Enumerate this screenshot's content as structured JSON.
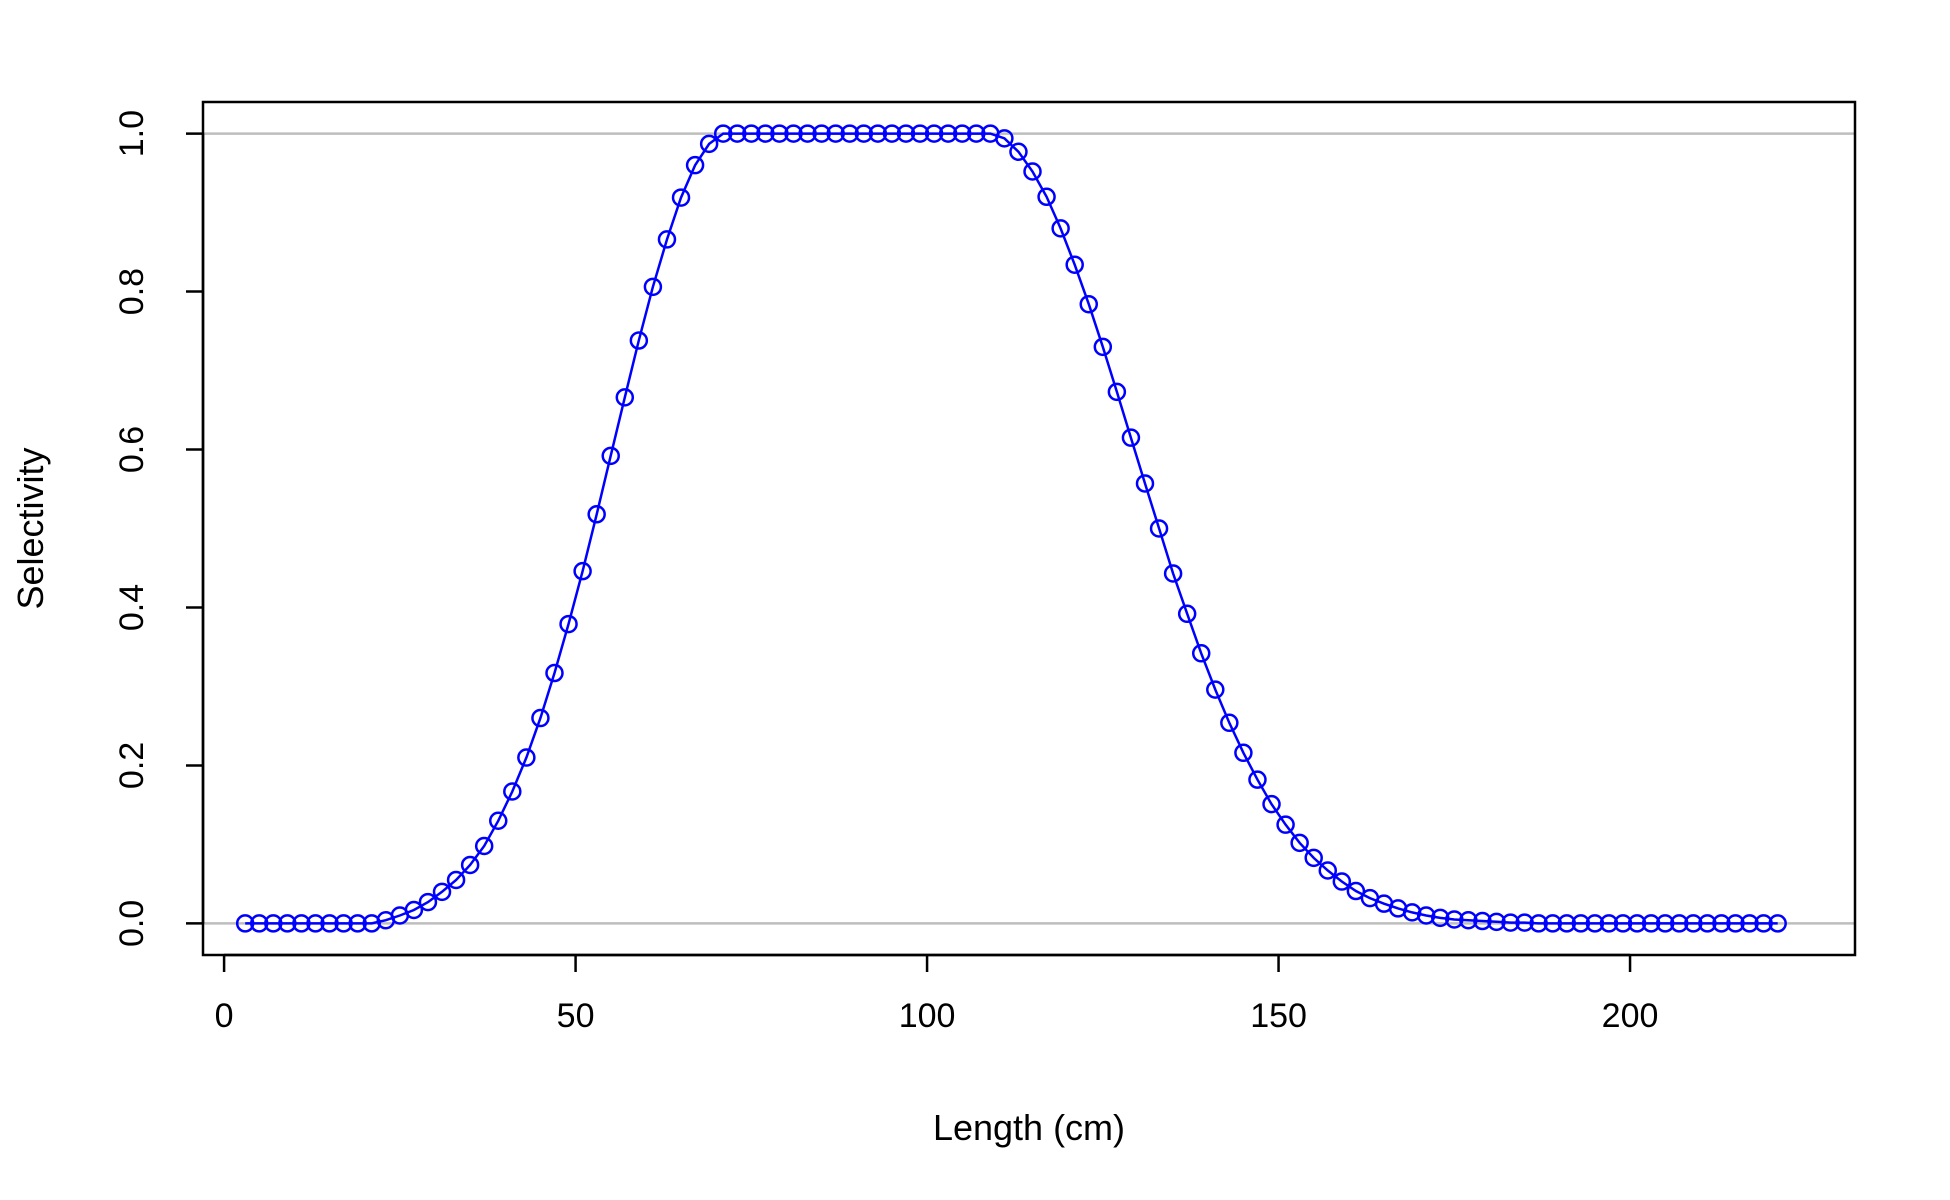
{
  "chart_data": {
    "type": "line",
    "xlabel": "Length (cm)",
    "ylabel": "Selectivity",
    "xlim": [
      -3,
      232
    ],
    "ylim": [
      -0.04,
      1.04
    ],
    "x_ticks": [
      0,
      50,
      100,
      150,
      200
    ],
    "x_tick_labels": [
      "0",
      "50",
      "100",
      "150",
      "200"
    ],
    "y_ticks": [
      0.0,
      0.2,
      0.4,
      0.6,
      0.8,
      1.0
    ],
    "y_tick_labels": [
      "0.0",
      "0.2",
      "0.4",
      "0.6",
      "0.8",
      "1.0"
    ],
    "reference_lines_y": [
      0,
      1
    ],
    "grid": false,
    "legend": "none",
    "colors": {
      "series": "#0000ff",
      "reference": "#bebebe",
      "axis": "#000000"
    },
    "series": [
      {
        "x": [
          3,
          5,
          7,
          9,
          11,
          13,
          15,
          17,
          19,
          21,
          23,
          25,
          27,
          29,
          31,
          33,
          35,
          37,
          39,
          41,
          43,
          45,
          47,
          49,
          51,
          53,
          55,
          57,
          59,
          61,
          63,
          65,
          67,
          69,
          71,
          73,
          75,
          77,
          79,
          81,
          83,
          85,
          87,
          89,
          91,
          93,
          95,
          97,
          99,
          101,
          103,
          105,
          107,
          109,
          111,
          113,
          115,
          117,
          119,
          121,
          123,
          125,
          127,
          129,
          131,
          133,
          135,
          137,
          139,
          141,
          143,
          145,
          147,
          149,
          151,
          153,
          155,
          157,
          159,
          161,
          163,
          165,
          167,
          169,
          171,
          173,
          175,
          177,
          179,
          181,
          183,
          185,
          187,
          189,
          191,
          193,
          195,
          197,
          199,
          201,
          203,
          205,
          207,
          209,
          211,
          213,
          215,
          217,
          219,
          221
        ],
        "y": [
          0,
          0,
          0,
          0,
          0,
          0,
          0,
          0,
          0,
          0,
          0.004,
          0.01,
          0.017,
          0.027,
          0.04,
          0.055,
          0.074,
          0.098,
          0.13,
          0.167,
          0.21,
          0.26,
          0.317,
          0.379,
          0.446,
          0.518,
          0.592,
          0.666,
          0.738,
          0.806,
          0.866,
          0.919,
          0.96,
          0.987,
          1,
          1,
          1,
          1,
          1,
          1,
          1,
          1,
          1,
          1,
          1,
          1,
          1,
          1,
          1,
          1,
          1,
          1,
          1,
          1,
          0.994,
          0.977,
          0.952,
          0.92,
          0.88,
          0.834,
          0.784,
          0.73,
          0.673,
          0.615,
          0.557,
          0.5,
          0.443,
          0.392,
          0.342,
          0.296,
          0.254,
          0.216,
          0.182,
          0.151,
          0.125,
          0.102,
          0.083,
          0.067,
          0.053,
          0.041,
          0.032,
          0.025,
          0.019,
          0.014,
          0.01,
          0.007,
          0.005,
          0.004,
          0.003,
          0.002,
          0.001,
          0.001,
          0,
          0,
          0,
          0,
          0,
          0,
          0,
          0,
          0,
          0,
          0,
          0,
          0,
          0,
          0,
          0,
          0,
          0
        ]
      }
    ]
  }
}
